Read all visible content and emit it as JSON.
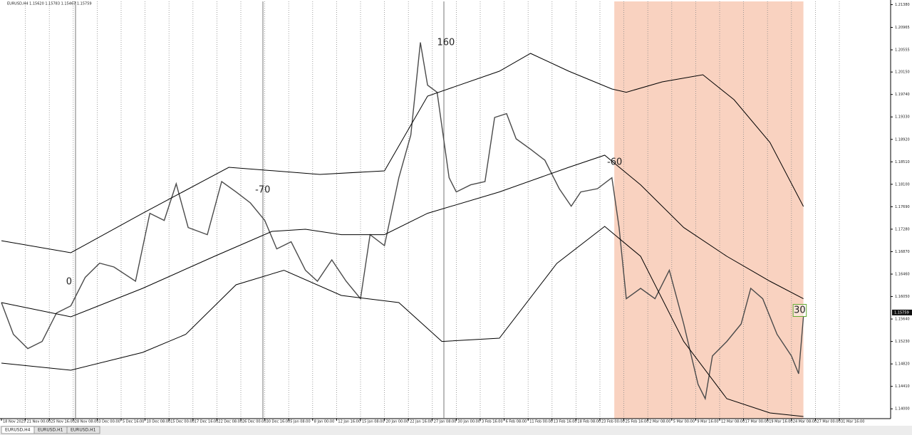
{
  "chart_data": {
    "type": "line",
    "title": "EURUSD,H4  1.15620 1.15783 1.15467 1.15759",
    "tabs": [
      "EURUSD,H4",
      "EURUSD,H1",
      "EURUSD,H1"
    ],
    "categories": [
      "18 Nov 2025",
      "21 Nov 00:00",
      "25 Nov 16:00",
      "28 Nov 08:00",
      "3 Dec 00:00",
      "5 Dec 16:00",
      "10 Dec 08:00",
      "15 Dec 00:00",
      "17 Dec 16:00",
      "22 Dec 08:00",
      "26 Dec 00:00",
      "30 Dec 16:00",
      "5 Jan 08:00",
      "8 Jan 00:00",
      "12 Jan 16:00",
      "15 Jan 08:00",
      "20 Jan 00:00",
      "22 Jan 16:00",
      "27 Jan 08:00",
      "30 Jan 00:00",
      "3 Feb 16:00",
      "6 Feb 08:00",
      "11 Feb 00:00",
      "13 Feb 16:00",
      "18 Feb 08:00",
      "23 Feb 00:00",
      "25 Feb 16:00",
      "2 Mar 08:00",
      "5 Mar 00:00",
      "9 Mar 16:00",
      "12 Mar 08:00",
      "17 Mar 00:00",
      "19 Mar 16:00",
      "24 Mar 08:00",
      "27 Mar 00:00",
      "31 Mar 16:00"
    ],
    "xlim": [
      0,
      37.1
    ],
    "ylim": [
      1.13821,
      1.21439
    ],
    "yticks": [
      {
        "value": 1.2138,
        "label": "1.21380"
      },
      {
        "value": 1.20965,
        "label": "1.20965"
      },
      {
        "value": 1.20555,
        "label": "1.20555"
      },
      {
        "value": 1.2015,
        "label": "1.20150"
      },
      {
        "value": 1.1974,
        "label": "1.19740"
      },
      {
        "value": 1.1933,
        "label": "1.19330"
      },
      {
        "value": 1.1892,
        "label": "1.18920"
      },
      {
        "value": 1.1851,
        "label": "1.18510"
      },
      {
        "value": 1.181,
        "label": "1.18100"
      },
      {
        "value": 1.1769,
        "label": "1.17690"
      },
      {
        "value": 1.1728,
        "label": "1.17280"
      },
      {
        "value": 1.1687,
        "label": "1.16870"
      },
      {
        "value": 1.1646,
        "label": "1.16460"
      },
      {
        "value": 1.1605,
        "label": "1.16050"
      },
      {
        "value": 1.1564,
        "label": "1.15640"
      },
      {
        "value": 1.1523,
        "label": "1.15230"
      },
      {
        "value": 1.1482,
        "label": "1.14820"
      },
      {
        "value": 1.1441,
        "label": "1.14410"
      },
      {
        "value": 1.14,
        "label": "1.14000"
      }
    ],
    "grid": true,
    "region": {
      "x": [
        25.6,
        33.5
      ],
      "color": "#f8cdb9"
    },
    "last_price": {
      "value": 1.15759,
      "label": "1.15759"
    },
    "series": [
      {
        "color": "#4a4a4a",
        "width": 1.4,
        "x": [
          0,
          0.5,
          1.1,
          1.7,
          2.3,
          2.9,
          3.5,
          4.1,
          4.7,
          5.6,
          6.2,
          6.8,
          7.3,
          7.8,
          8.6,
          9.2,
          9.8,
          10.4,
          11.0,
          11.5,
          12.1,
          12.7,
          13.2,
          13.8,
          14.4,
          15.0,
          15.4,
          16.0,
          16.6,
          17.1,
          17.5,
          17.8,
          18.2,
          18.7,
          19.0,
          19.6,
          20.2,
          20.6,
          21.1,
          21.5,
          22.1,
          22.7,
          23.3,
          23.8,
          24.2,
          24.9,
          25.5,
          25.8,
          26.1,
          26.7,
          27.3,
          27.9,
          28.5,
          29.1,
          29.4,
          29.7,
          30.3,
          30.9,
          31.3,
          31.8,
          32.4,
          33.0,
          33.3,
          33.5
        ],
        "values": [
          1.1594,
          1.1536,
          1.151,
          1.1523,
          1.1575,
          1.1588,
          1.164,
          1.1666,
          1.1659,
          1.1633,
          1.1757,
          1.1744,
          1.1811,
          1.1731,
          1.1718,
          1.1815,
          1.1796,
          1.1776,
          1.1744,
          1.1692,
          1.1705,
          1.1653,
          1.1633,
          1.1672,
          1.1633,
          1.1601,
          1.1718,
          1.1698,
          1.1822,
          1.19,
          1.2069,
          1.1991,
          1.1978,
          1.1822,
          1.1796,
          1.1809,
          1.1815,
          1.1932,
          1.1939,
          1.1893,
          1.1874,
          1.1854,
          1.1802,
          1.177,
          1.1796,
          1.1802,
          1.1822,
          1.1731,
          1.1601,
          1.162,
          1.1601,
          1.1653,
          1.1555,
          1.14445,
          1.14185,
          1.14965,
          1.1523,
          1.1555,
          1.162,
          1.1601,
          1.1536,
          1.14965,
          1.1464,
          1.1568
        ]
      },
      {
        "color": "#000000",
        "width": 1,
        "x": [
          0,
          2.9,
          5.9,
          9.5,
          13.3,
          16.0,
          17.8,
          20.8,
          22.1,
          23.7,
          25.5,
          26.1,
          27.6,
          29.3,
          30.6,
          32.1,
          33.5
        ],
        "values": [
          1.1707,
          1.1685,
          1.1757,
          1.1841,
          1.1828,
          1.18345,
          1.1971,
          1.20165,
          1.2049,
          1.20165,
          1.1984,
          1.1978,
          1.1997,
          1.201,
          1.19645,
          1.18865,
          1.17695
        ]
      },
      {
        "color": "#000000",
        "width": 1,
        "x": [
          0,
          2.9,
          5.9,
          8.9,
          11.3,
          12.7,
          14.2,
          16.0,
          17.8,
          20.8,
          23.7,
          25.2,
          26.7,
          28.5,
          30.3,
          32.1,
          33.5
        ],
        "values": [
          1.1594,
          1.1568,
          1.162,
          1.16785,
          1.1724,
          1.17279,
          1.1718,
          1.1718,
          1.1757,
          1.1796,
          1.1841,
          1.18631,
          1.1809,
          1.1731,
          1.16785,
          1.1633,
          1.1601
        ]
      },
      {
        "color": "#000000",
        "width": 1,
        "x": [
          0,
          2.9,
          5.9,
          7.7,
          9.8,
          11.8,
          14.2,
          16.6,
          18.4,
          20.8,
          23.2,
          25.2,
          26.7,
          28.5,
          30.3,
          32.1,
          33.5
        ],
        "values": [
          1.14835,
          1.14705,
          1.1503,
          1.1536,
          1.16265,
          1.1653,
          1.1607,
          1.1594,
          1.1523,
          1.1529,
          1.16655,
          1.17331,
          1.16785,
          1.1523,
          1.14185,
          1.13925,
          1.1386
        ]
      }
    ],
    "annotations": [
      {
        "text": "0",
        "x": 2.7,
        "y": 1.16317,
        "color": "#33cccc"
      },
      {
        "text": "-70",
        "x": 10.6,
        "y": 1.17994,
        "color": "#e03030"
      },
      {
        "text": "160",
        "x": 18.2,
        "y": 1.20685,
        "color": "#e03030"
      },
      {
        "text": "-60",
        "x": 25.3,
        "y": 1.18501,
        "color": "#e03030"
      },
      {
        "text": "30",
        "x": 33.1,
        "y": 1.15797,
        "color": "#66aa33"
      }
    ]
  }
}
